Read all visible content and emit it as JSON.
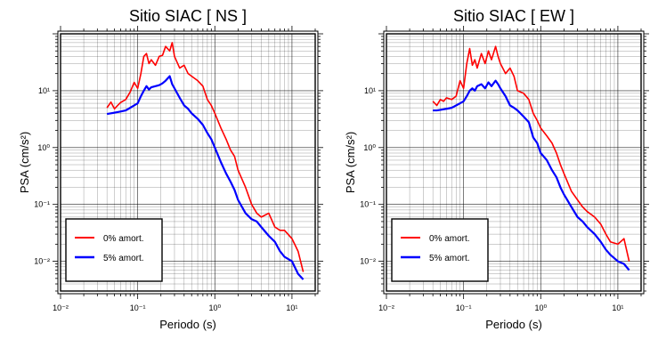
{
  "chart_data": [
    {
      "type": "line",
      "title": "Sitio SIAC [ NS ]",
      "xlabel": "Periodo (s)",
      "ylabel": "PSA (cm/s²)",
      "xscale": "log",
      "yscale": "log",
      "xlim": [
        0.01,
        20
      ],
      "ylim": [
        0.003,
        100
      ],
      "grid": true,
      "legend_position": "bottom-left",
      "x_tick_labels": [
        "10⁻²",
        "10⁻¹",
        "10⁰",
        "10¹"
      ],
      "y_tick_labels": [
        "10⁻²",
        "10⁻¹",
        "10⁰",
        "10¹"
      ],
      "series": [
        {
          "name": "0% amort.",
          "color": "#ff0000",
          "x": [
            0.04,
            0.045,
            0.05,
            0.055,
            0.06,
            0.07,
            0.08,
            0.09,
            0.1,
            0.11,
            0.12,
            0.13,
            0.14,
            0.15,
            0.17,
            0.19,
            0.21,
            0.23,
            0.26,
            0.28,
            0.3,
            0.35,
            0.4,
            0.45,
            0.5,
            0.6,
            0.7,
            0.8,
            0.9,
            1.0,
            1.2,
            1.4,
            1.6,
            1.8,
            2.0,
            2.5,
            3.0,
            3.5,
            4.0,
            5.0,
            6.0,
            7.0,
            8.0,
            10.0,
            12.0,
            14.0
          ],
          "y": [
            5.0,
            6.3,
            4.8,
            5.5,
            6.2,
            7.0,
            9.5,
            14.0,
            11.0,
            20.0,
            40.0,
            45.0,
            30.0,
            35.0,
            28.0,
            40.0,
            42.0,
            60.0,
            50.0,
            70.0,
            40.0,
            25.0,
            28.0,
            20.0,
            18.0,
            15.0,
            12.0,
            7.0,
            5.5,
            4.0,
            2.2,
            1.4,
            0.9,
            0.7,
            0.4,
            0.2,
            0.1,
            0.07,
            0.06,
            0.07,
            0.04,
            0.035,
            0.035,
            0.025,
            0.015,
            0.0065
          ]
        },
        {
          "name": "5% amort.",
          "color": "#0000ff",
          "x": [
            0.04,
            0.045,
            0.05,
            0.055,
            0.06,
            0.07,
            0.08,
            0.09,
            0.1,
            0.11,
            0.12,
            0.13,
            0.14,
            0.15,
            0.17,
            0.19,
            0.21,
            0.23,
            0.26,
            0.28,
            0.3,
            0.35,
            0.4,
            0.45,
            0.5,
            0.6,
            0.7,
            0.8,
            0.9,
            1.0,
            1.2,
            1.4,
            1.6,
            1.8,
            2.0,
            2.5,
            3.0,
            3.5,
            4.0,
            5.0,
            6.0,
            7.0,
            8.0,
            10.0,
            12.0,
            14.0
          ],
          "y": [
            3.9,
            4.0,
            4.1,
            4.2,
            4.3,
            4.5,
            5.0,
            5.5,
            6.0,
            8.0,
            10.0,
            12.0,
            10.5,
            11.5,
            12.0,
            12.5,
            13.5,
            15.0,
            18.0,
            13.0,
            11.0,
            7.5,
            5.5,
            4.8,
            4.0,
            3.2,
            2.5,
            1.8,
            1.4,
            1.0,
            0.55,
            0.35,
            0.25,
            0.18,
            0.12,
            0.07,
            0.055,
            0.05,
            0.04,
            0.028,
            0.022,
            0.015,
            0.012,
            0.01,
            0.006,
            0.0048
          ]
        }
      ]
    },
    {
      "type": "line",
      "title": "Sitio SIAC [ EW ]",
      "xlabel": "Periodo (s)",
      "ylabel": "PSA (cm/s²)",
      "xscale": "log",
      "yscale": "log",
      "xlim": [
        0.01,
        20
      ],
      "ylim": [
        0.003,
        100
      ],
      "grid": true,
      "legend_position": "bottom-left",
      "x_tick_labels": [
        "10⁻²",
        "10⁻¹",
        "10⁰",
        "10¹"
      ],
      "y_tick_labels": [
        "10⁻²",
        "10⁻¹",
        "10⁰",
        "10¹"
      ],
      "series": [
        {
          "name": "0% amort.",
          "color": "#ff0000",
          "x": [
            0.04,
            0.045,
            0.05,
            0.055,
            0.06,
            0.07,
            0.08,
            0.09,
            0.1,
            0.11,
            0.12,
            0.13,
            0.14,
            0.15,
            0.17,
            0.19,
            0.21,
            0.23,
            0.26,
            0.28,
            0.3,
            0.35,
            0.4,
            0.45,
            0.5,
            0.6,
            0.7,
            0.8,
            0.9,
            1.0,
            1.2,
            1.4,
            1.6,
            1.8,
            2.0,
            2.5,
            3.0,
            3.5,
            4.0,
            5.0,
            6.0,
            7.0,
            8.0,
            10.0,
            12.0,
            14.0
          ],
          "y": [
            6.5,
            5.5,
            7.0,
            6.5,
            7.5,
            7.0,
            8.0,
            15.0,
            11.0,
            30.0,
            55.0,
            28.0,
            35.0,
            25.0,
            45.0,
            30.0,
            50.0,
            35.0,
            60.0,
            40.0,
            30.0,
            20.0,
            25.0,
            18.0,
            10.0,
            9.0,
            7.0,
            4.0,
            3.0,
            2.2,
            1.6,
            1.2,
            0.8,
            0.5,
            0.35,
            0.17,
            0.12,
            0.09,
            0.075,
            0.06,
            0.045,
            0.03,
            0.022,
            0.02,
            0.025,
            0.01
          ]
        },
        {
          "name": "5% amort.",
          "color": "#0000ff",
          "x": [
            0.04,
            0.045,
            0.05,
            0.055,
            0.06,
            0.07,
            0.08,
            0.09,
            0.1,
            0.11,
            0.12,
            0.13,
            0.14,
            0.15,
            0.17,
            0.19,
            0.21,
            0.23,
            0.26,
            0.28,
            0.3,
            0.35,
            0.4,
            0.45,
            0.5,
            0.6,
            0.7,
            0.8,
            0.9,
            1.0,
            1.2,
            1.4,
            1.6,
            1.8,
            2.0,
            2.5,
            3.0,
            3.5,
            4.0,
            5.0,
            6.0,
            7.0,
            8.0,
            10.0,
            12.0,
            14.0
          ],
          "y": [
            4.5,
            4.5,
            4.6,
            4.7,
            4.8,
            5.0,
            5.5,
            6.0,
            6.5,
            8.0,
            10.0,
            11.0,
            10.0,
            12.0,
            13.0,
            11.0,
            14.0,
            12.0,
            15.0,
            13.0,
            11.0,
            8.0,
            5.5,
            5.0,
            4.5,
            3.5,
            2.8,
            1.5,
            1.2,
            0.8,
            0.6,
            0.4,
            0.3,
            0.2,
            0.15,
            0.09,
            0.06,
            0.05,
            0.04,
            0.03,
            0.022,
            0.016,
            0.013,
            0.01,
            0.009,
            0.007
          ]
        }
      ]
    }
  ]
}
